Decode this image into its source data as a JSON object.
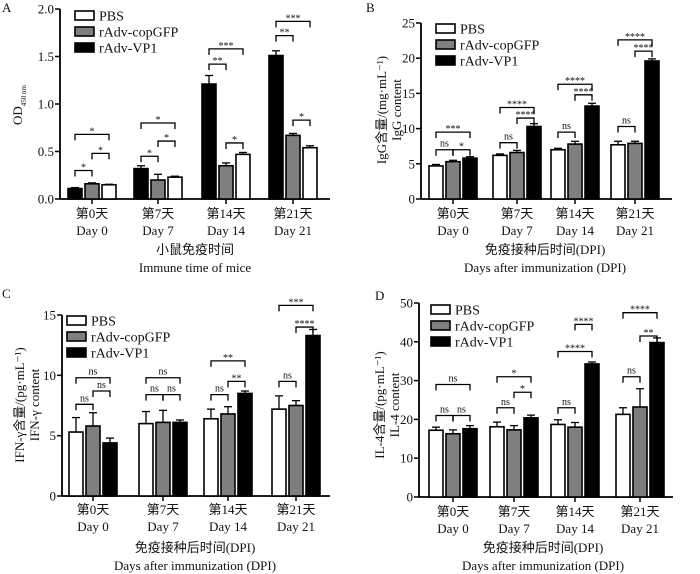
{
  "chart_data": [
    {
      "panel": "A",
      "type": "bar",
      "ylabel_main": "OD",
      "ylabel_sub": "450 nm",
      "xlabel_cn": "小鼠免疫时间",
      "xlabel_en": "Immune time of mice",
      "categories_cn": [
        "第0天",
        "第7天",
        "第14天",
        "第21天"
      ],
      "categories_en": [
        "Day 0",
        "Day 7",
        "Day 14",
        "Day 21"
      ],
      "ylim": [
        0,
        2.0
      ],
      "yticks": [
        "0.0",
        "0.5",
        "1.0",
        "1.5",
        "2.0"
      ],
      "ytick_values": [
        0,
        0.5,
        1.0,
        1.5,
        2.0
      ],
      "bar_order": [
        "rAdv-VP1",
        "rAdv-copGFP",
        "PBS"
      ],
      "legend": [
        "PBS",
        "rAdv-copGFP",
        "rAdv-VP1"
      ],
      "series": [
        {
          "name": "rAdv-VP1",
          "values": [
            0.11,
            0.32,
            1.21,
            1.51
          ],
          "errors": [
            0.01,
            0.03,
            0.09,
            0.05
          ]
        },
        {
          "name": "rAdv-copGFP",
          "values": [
            0.16,
            0.2,
            0.35,
            0.67
          ],
          "errors": [
            0.01,
            0.06,
            0.03,
            0.02
          ]
        },
        {
          "name": "PBS",
          "values": [
            0.15,
            0.23,
            0.47,
            0.54
          ],
          "errors": [
            0.005,
            0.01,
            0.02,
            0.02
          ]
        }
      ],
      "significance": [
        {
          "group": 0,
          "from": 0,
          "to": 1,
          "label": "*",
          "level": 0.3
        },
        {
          "group": 0,
          "from": 1,
          "to": 2,
          "label": "*",
          "level": 0.48
        },
        {
          "group": 0,
          "from": 0,
          "to": 2,
          "label": "*",
          "level": 0.68
        },
        {
          "group": 1,
          "from": 0,
          "to": 1,
          "label": "*",
          "level": 0.45
        },
        {
          "group": 1,
          "from": 1,
          "to": 2,
          "label": "*",
          "level": 0.61
        },
        {
          "group": 1,
          "from": 0,
          "to": 2,
          "label": "*",
          "level": 0.8
        },
        {
          "group": 2,
          "from": 1,
          "to": 2,
          "label": "*",
          "level": 0.59
        },
        {
          "group": 2,
          "from": 0,
          "to": 1,
          "label": "**",
          "level": 1.42
        },
        {
          "group": 2,
          "from": 0,
          "to": 2,
          "label": "***",
          "level": 1.58
        },
        {
          "group": 3,
          "from": 1,
          "to": 2,
          "label": "*",
          "level": 0.83
        },
        {
          "group": 3,
          "from": 0,
          "to": 1,
          "label": "**",
          "level": 1.72
        },
        {
          "group": 3,
          "from": 0,
          "to": 2,
          "label": "***",
          "level": 1.87
        }
      ]
    },
    {
      "panel": "B",
      "type": "bar",
      "ylabel_main": "IgG含量/(mg·mL⁻¹)",
      "ylabel_sub": "IgG content",
      "xlabel_cn": "免疫接种后时间(DPI)",
      "xlabel_en": "Days after immunization (DPI)",
      "categories_cn": [
        "第0天",
        "第7天",
        "第14天",
        "第21天"
      ],
      "categories_en": [
        "Day 0",
        "Day 7",
        "Day 14",
        "Day 21"
      ],
      "ylim": [
        0,
        25
      ],
      "yticks": [
        "0",
        "5",
        "10",
        "15",
        "20",
        "25"
      ],
      "ytick_values": [
        0,
        5,
        10,
        15,
        20,
        25
      ],
      "bar_order": [
        "PBS",
        "rAdv-copGFP",
        "rAdv-VP1"
      ],
      "legend": [
        "PBS",
        "rAdv-copGFP",
        "rAdv-VP1"
      ],
      "series": [
        {
          "name": "PBS",
          "values": [
            4.7,
            6.2,
            7.0,
            7.7
          ],
          "errors": [
            0.2,
            0.2,
            0.2,
            0.5
          ]
        },
        {
          "name": "rAdv-copGFP",
          "values": [
            5.3,
            6.6,
            7.8,
            7.9
          ],
          "errors": [
            0.2,
            0.3,
            0.4,
            0.3
          ]
        },
        {
          "name": "rAdv-VP1",
          "values": [
            5.8,
            10.3,
            13.2,
            19.6
          ],
          "errors": [
            0.2,
            0.4,
            0.4,
            0.3
          ]
        }
      ],
      "significance": [
        {
          "group": 0,
          "from": 0,
          "to": 1,
          "label": "ns",
          "level": 7.0
        },
        {
          "group": 0,
          "from": 1,
          "to": 2,
          "label": "*",
          "level": 7.0
        },
        {
          "group": 0,
          "from": 0,
          "to": 2,
          "label": "***",
          "level": 9.5
        },
        {
          "group": 1,
          "from": 0,
          "to": 1,
          "label": "ns",
          "level": 8.0
        },
        {
          "group": 1,
          "from": 1,
          "to": 2,
          "label": "****",
          "level": 11.5
        },
        {
          "group": 1,
          "from": 0,
          "to": 2,
          "label": "****",
          "level": 13.0
        },
        {
          "group": 2,
          "from": 0,
          "to": 1,
          "label": "ns",
          "level": 9.5
        },
        {
          "group": 2,
          "from": 1,
          "to": 2,
          "label": "****",
          "level": 14.8
        },
        {
          "group": 2,
          "from": 0,
          "to": 2,
          "label": "****",
          "level": 16.3
        },
        {
          "group": 3,
          "from": 0,
          "to": 1,
          "label": "ns",
          "level": 10.3
        },
        {
          "group": 3,
          "from": 1,
          "to": 2,
          "label": "****",
          "level": 21.0
        },
        {
          "group": 3,
          "from": 0,
          "to": 2,
          "label": "****",
          "level": 22.6
        }
      ]
    },
    {
      "panel": "C",
      "type": "bar",
      "ylabel_main": "IFN-γ含量/(pg·mL⁻¹)",
      "ylabel_sub": "IFN-γ content",
      "xlabel_cn": "免疫接种后时间(DPI)",
      "xlabel_en": "Days after immunization (DPI)",
      "categories_cn": [
        "第0天",
        "第7天",
        "第14天",
        "第21天"
      ],
      "categories_en": [
        "Day 0",
        "Day 7",
        "Day 14",
        "Day 21"
      ],
      "ylim": [
        0,
        15
      ],
      "yticks": [
        "0",
        "5",
        "10",
        "15"
      ],
      "ytick_values": [
        0,
        5,
        10,
        15
      ],
      "bar_order": [
        "PBS",
        "rAdv-copGFP",
        "rAdv-VP1"
      ],
      "legend": [
        "PBS",
        "rAdv-copGFP",
        "rAdv-VP1"
      ],
      "series": [
        {
          "name": "PBS",
          "values": [
            5.3,
            6.0,
            6.4,
            7.2
          ],
          "errors": [
            1.2,
            1.0,
            0.8,
            1.1
          ]
        },
        {
          "name": "rAdv-copGFP",
          "values": [
            5.8,
            6.1,
            6.8,
            7.5
          ],
          "errors": [
            1.1,
            1.0,
            0.6,
            0.4
          ]
        },
        {
          "name": "rAdv-VP1",
          "values": [
            4.4,
            6.1,
            8.5,
            13.3
          ],
          "errors": [
            0.4,
            0.2,
            0.2,
            0.5
          ]
        }
      ],
      "significance": [
        {
          "group": 0,
          "from": 0,
          "to": 1,
          "label": "ns",
          "level": 7.6
        },
        {
          "group": 0,
          "from": 1,
          "to": 2,
          "label": "ns",
          "level": 8.7
        },
        {
          "group": 0,
          "from": 0,
          "to": 2,
          "label": "ns",
          "level": 9.8
        },
        {
          "group": 1,
          "from": 0,
          "to": 1,
          "label": "ns",
          "level": 8.4
        },
        {
          "group": 1,
          "from": 1,
          "to": 2,
          "label": "ns",
          "level": 8.4
        },
        {
          "group": 1,
          "from": 0,
          "to": 2,
          "label": "ns",
          "level": 9.8
        },
        {
          "group": 2,
          "from": 0,
          "to": 1,
          "label": "ns",
          "level": 8.4
        },
        {
          "group": 2,
          "from": 1,
          "to": 2,
          "label": "**",
          "level": 9.5
        },
        {
          "group": 2,
          "from": 0,
          "to": 2,
          "label": "**",
          "level": 11.2
        },
        {
          "group": 3,
          "from": 0,
          "to": 1,
          "label": "ns",
          "level": 9.5
        },
        {
          "group": 3,
          "from": 1,
          "to": 2,
          "label": "****",
          "level": 14.0
        },
        {
          "group": 3,
          "from": 0,
          "to": 2,
          "label": "***",
          "level": 15.8
        }
      ]
    },
    {
      "panel": "D",
      "type": "bar",
      "ylabel_main": "IL-4含量/(pg·mL⁻¹)",
      "ylabel_sub": "IL-4 content",
      "xlabel_cn": "免疫接种后时间(DPI)",
      "xlabel_en": "Days after immunization (DPI)",
      "categories_cn": [
        "第0天",
        "第7天",
        "第14天",
        "第21天"
      ],
      "categories_en": [
        "Day 0",
        "Day 7",
        "Day 14",
        "Day 21"
      ],
      "ylim": [
        0,
        50
      ],
      "yticks": [
        "0",
        "10",
        "20",
        "30",
        "40",
        "50"
      ],
      "ytick_values": [
        0,
        10,
        20,
        30,
        40,
        50
      ],
      "bar_order": [
        "PBS",
        "rAdv-copGFP",
        "rAdv-VP1"
      ],
      "legend": [
        "PBS",
        "rAdv-copGFP",
        "rAdv-VP1"
      ],
      "series": [
        {
          "name": "PBS",
          "values": [
            17.2,
            18.1,
            18.7,
            21.3
          ],
          "errors": [
            0.8,
            1.2,
            1.2,
            1.7
          ]
        },
        {
          "name": "rAdv-copGFP",
          "values": [
            16.3,
            17.3,
            18.0,
            23.2
          ],
          "errors": [
            1.0,
            1.1,
            1.2,
            4.7
          ]
        },
        {
          "name": "rAdv-VP1",
          "values": [
            17.6,
            20.4,
            34.3,
            39.8
          ],
          "errors": [
            0.8,
            0.7,
            0.5,
            1.2
          ]
        }
      ],
      "significance": [
        {
          "group": 0,
          "from": 0,
          "to": 1,
          "label": "ns",
          "level": 21.0
        },
        {
          "group": 0,
          "from": 1,
          "to": 2,
          "label": "ns",
          "level": 21.0
        },
        {
          "group": 0,
          "from": 0,
          "to": 2,
          "label": "ns",
          "level": 29.0
        },
        {
          "group": 1,
          "from": 0,
          "to": 1,
          "label": "ns",
          "level": 23.0
        },
        {
          "group": 1,
          "from": 1,
          "to": 2,
          "label": "*",
          "level": 27.0
        },
        {
          "group": 1,
          "from": 0,
          "to": 2,
          "label": "*",
          "level": 31.0
        },
        {
          "group": 2,
          "from": 0,
          "to": 1,
          "label": "ns",
          "level": 23.0
        },
        {
          "group": 2,
          "from": 0,
          "to": 2,
          "label": "****",
          "level": 37.5
        },
        {
          "group": 2,
          "from": 1,
          "to": 2,
          "label": "****",
          "level": 44.5
        },
        {
          "group": 3,
          "from": 0,
          "to": 1,
          "label": "ns",
          "level": 31.0
        },
        {
          "group": 3,
          "from": 1,
          "to": 2,
          "label": "**",
          "level": 41.5
        },
        {
          "group": 3,
          "from": 0,
          "to": 2,
          "label": "****",
          "level": 47.5
        }
      ]
    }
  ],
  "colors": {
    "PBS": "#ffffff",
    "rAdv-copGFP": "#7f7f7f",
    "rAdv-VP1": "#000000"
  }
}
